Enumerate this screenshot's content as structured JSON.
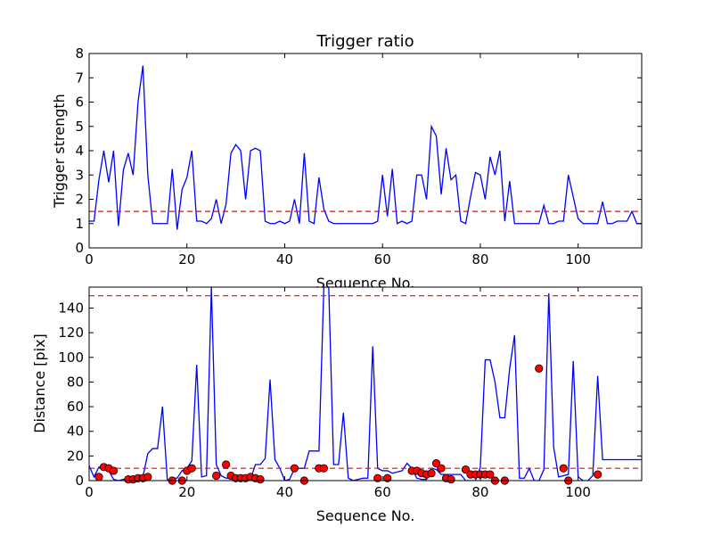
{
  "chart_data": [
    {
      "type": "line",
      "title": "Trigger ratio",
      "xlabel": "Sequence No.",
      "ylabel": "Trigger strength",
      "xlim": [
        0,
        113
      ],
      "ylim": [
        0,
        8
      ],
      "xticks": [
        0,
        20,
        40,
        60,
        80,
        100
      ],
      "yticks": [
        0,
        1,
        2,
        3,
        4,
        5,
        6,
        7,
        8
      ],
      "threshold": 1.5,
      "line_color": "#0000ff",
      "threshold_color": "#ff0000",
      "series": [
        {
          "x": [
            0,
            1,
            2,
            3,
            4,
            5,
            6,
            7,
            8,
            9,
            10,
            11,
            12,
            13,
            14,
            15,
            16,
            17,
            18,
            19,
            20,
            21,
            22,
            23,
            24,
            25,
            26,
            27,
            28,
            29,
            30,
            31,
            32,
            33,
            34,
            35,
            36,
            37,
            38,
            39,
            40,
            41,
            42,
            43,
            44,
            45,
            46,
            47,
            48,
            49,
            50,
            51,
            52,
            53,
            54,
            55,
            56,
            57,
            58,
            59,
            60,
            61,
            62,
            63,
            64,
            65,
            66,
            67,
            68,
            69,
            70,
            71,
            72,
            73,
            74,
            75,
            76,
            77,
            78,
            79,
            80,
            81,
            82,
            83,
            84,
            85,
            86,
            87,
            88,
            89,
            90,
            91,
            92,
            93,
            94,
            95,
            96,
            97,
            98,
            99,
            100,
            101,
            102,
            103,
            104,
            105,
            106,
            107,
            108,
            109,
            110,
            111,
            112,
            113
          ],
          "y": [
            1.1,
            1.1,
            2.8,
            4.0,
            2.7,
            4.0,
            0.9,
            3.2,
            3.9,
            3.0,
            6.0,
            7.5,
            3.0,
            1.0,
            1.0,
            1.0,
            1.0,
            3.25,
            0.75,
            2.4,
            2.9,
            4.0,
            1.1,
            1.1,
            1.0,
            1.2,
            2.0,
            1.0,
            1.8,
            3.9,
            4.25,
            4.0,
            2.0,
            4.0,
            4.1,
            4.0,
            1.1,
            1.0,
            1.0,
            1.1,
            1.0,
            1.1,
            2.0,
            1.0,
            3.9,
            1.1,
            1.0,
            2.9,
            1.6,
            1.1,
            1.0,
            1.0,
            1.0,
            1.0,
            1.0,
            1.0,
            1.0,
            1.0,
            1.0,
            1.1,
            3.0,
            1.3,
            3.25,
            1.0,
            1.1,
            1.0,
            1.1,
            3.0,
            3.0,
            2.0,
            5.0,
            4.6,
            2.2,
            4.1,
            2.8,
            3.0,
            1.1,
            1.0,
            2.1,
            3.1,
            3.0,
            2.0,
            3.75,
            3.0,
            4.0,
            1.1,
            2.75,
            1.0,
            1.0,
            1.0,
            1.0,
            1.0,
            1.0,
            1.75,
            1.0,
            1.0,
            1.1,
            1.1,
            3.0,
            2.1,
            1.2,
            1.0,
            1.0,
            1.0,
            1.0,
            1.9,
            1.0,
            1.0,
            1.1,
            1.1,
            1.1,
            1.5,
            1.0,
            1.0
          ]
        }
      ]
    },
    {
      "type": "line",
      "title": "",
      "xlabel": "Sequence No.",
      "ylabel": "Distance [pix]",
      "xlim": [
        0,
        113
      ],
      "ylim": [
        0,
        157
      ],
      "xticks": [
        0,
        20,
        40,
        60,
        80,
        100
      ],
      "yticks": [
        0,
        20,
        40,
        60,
        80,
        100,
        120,
        140
      ],
      "thresholds": [
        150,
        10
      ],
      "line_color": "#0000ff",
      "threshold_color": "#ff0000",
      "marker_color": "#ff0000",
      "series": [
        {
          "x": [
            0,
            1,
            2,
            3,
            4,
            5,
            6,
            7,
            8,
            9,
            10,
            11,
            12,
            13,
            14,
            15,
            16,
            17,
            18,
            19,
            20,
            21,
            22,
            23,
            24,
            25,
            26,
            27,
            28,
            29,
            30,
            31,
            32,
            33,
            34,
            35,
            36,
            37,
            38,
            39,
            40,
            41,
            42,
            43,
            44,
            45,
            46,
            47,
            48,
            49,
            50,
            51,
            52,
            53,
            54,
            55,
            56,
            57,
            58,
            59,
            60,
            61,
            62,
            63,
            64,
            65,
            66,
            67,
            68,
            69,
            70,
            71,
            72,
            73,
            74,
            75,
            76,
            77,
            78,
            79,
            80,
            81,
            82,
            83,
            84,
            85,
            86,
            87,
            88,
            89,
            90,
            91,
            92,
            93,
            94,
            95,
            96,
            97,
            98,
            99,
            100,
            101,
            102,
            103,
            104,
            105,
            106,
            107,
            108,
            109,
            110,
            111,
            112,
            113
          ],
          "y": [
            12,
            3,
            11,
            10,
            8,
            1,
            0,
            1,
            1,
            2,
            2,
            3,
            22,
            26,
            26,
            60,
            0,
            2,
            2,
            8,
            10,
            16,
            94,
            3,
            4,
            157,
            13,
            4,
            2,
            2,
            2,
            3,
            2,
            1,
            13,
            13,
            18,
            82,
            17,
            10,
            0,
            1,
            10,
            10,
            10,
            24,
            24,
            24,
            157,
            157,
            13,
            13,
            55,
            2,
            0,
            1,
            2,
            2,
            109,
            10,
            8,
            8,
            6,
            7,
            8,
            14,
            10,
            2,
            1,
            1,
            10,
            9,
            5,
            5,
            5,
            5,
            5,
            0,
            0,
            0,
            11,
            98,
            98,
            80,
            51,
            51,
            91,
            118,
            2,
            2,
            10,
            0,
            0,
            9,
            152,
            27,
            3,
            4,
            5,
            97,
            3,
            0,
            0,
            4,
            85,
            17,
            17,
            17,
            17,
            17,
            17,
            17,
            17,
            17
          ]
        },
        {
          "name": "",
          "markers_x": [
            2,
            3,
            4,
            5,
            8,
            9,
            10,
            11,
            12,
            17,
            19,
            20,
            21,
            26,
            28,
            29,
            30,
            31,
            32,
            33,
            34,
            35,
            42,
            44,
            47,
            48,
            59,
            61,
            66,
            67,
            68,
            69,
            70,
            71,
            72,
            73,
            74,
            77,
            78,
            79,
            80,
            81,
            82,
            83,
            85,
            92,
            97,
            98,
            104
          ],
          "markers_y": [
            3,
            11,
            10,
            8,
            1,
            1,
            2,
            2,
            3,
            0,
            0,
            8,
            10,
            4,
            13,
            4,
            2,
            2,
            2,
            3,
            2,
            1,
            10,
            0,
            10,
            10,
            2,
            2,
            8,
            8,
            6,
            5,
            6,
            14,
            10,
            2,
            1,
            9,
            5,
            5,
            5,
            5,
            5,
            0,
            0,
            91,
            10,
            0,
            5
          ]
        }
      ]
    }
  ]
}
